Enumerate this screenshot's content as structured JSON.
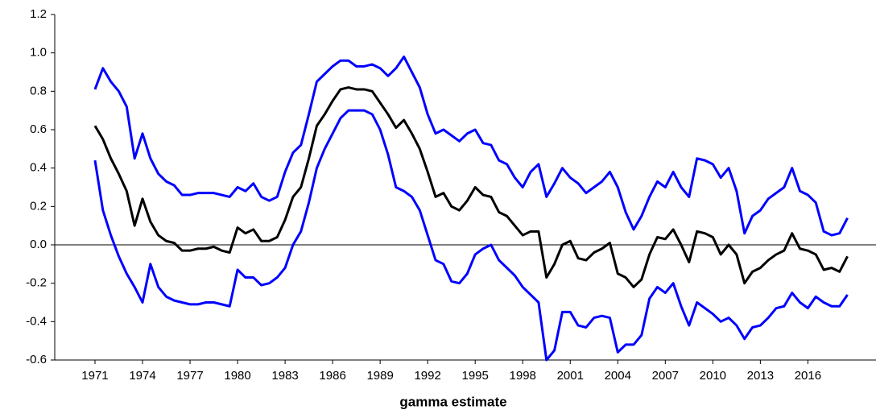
{
  "chart_data": {
    "type": "line",
    "title": "gamma estimate",
    "x": [
      1971,
      1971.5,
      1972,
      1972.5,
      1973,
      1973.5,
      1974,
      1974.5,
      1975,
      1975.5,
      1976,
      1976.5,
      1977,
      1977.5,
      1978,
      1978.5,
      1979,
      1979.5,
      1980,
      1980.5,
      1981,
      1981.5,
      1982,
      1982.5,
      1983,
      1983.5,
      1984,
      1984.5,
      1985,
      1985.5,
      1986,
      1986.5,
      1987,
      1987.5,
      1988,
      1988.5,
      1989,
      1989.5,
      1990,
      1990.5,
      1991,
      1991.5,
      1992,
      1992.5,
      1993,
      1993.5,
      1994,
      1994.5,
      1995,
      1995.5,
      1996,
      1996.5,
      1997,
      1997.5,
      1998,
      1998.5,
      1999,
      1999.5,
      2000,
      2000.5,
      2001,
      2001.5,
      2002,
      2002.5,
      2003,
      2003.5,
      2004,
      2004.5,
      2005,
      2005.5,
      2006,
      2006.5,
      2007,
      2007.5,
      2008,
      2008.5,
      2009,
      2009.5,
      2010,
      2010.5,
      2011,
      2011.5,
      2012,
      2012.5,
      2013,
      2013.5,
      2014,
      2014.5,
      2015,
      2015.5,
      2016,
      2016.5,
      2017,
      2017.5,
      2018,
      2018.5
    ],
    "series": [
      {
        "color": "#0000ff",
        "values": [
          0.81,
          0.92,
          0.85,
          0.8,
          0.72,
          0.45,
          0.58,
          0.45,
          0.37,
          0.33,
          0.31,
          0.26,
          0.26,
          0.27,
          0.27,
          0.27,
          0.26,
          0.25,
          0.3,
          0.28,
          0.32,
          0.25,
          0.23,
          0.25,
          0.38,
          0.48,
          0.52,
          0.68,
          0.85,
          0.89,
          0.93,
          0.96,
          0.96,
          0.93,
          0.93,
          0.94,
          0.92,
          0.88,
          0.92,
          0.98,
          0.9,
          0.82,
          0.68,
          0.58,
          0.6,
          0.57,
          0.54,
          0.58,
          0.6,
          0.53,
          0.52,
          0.44,
          0.42,
          0.35,
          0.3,
          0.38,
          0.42,
          0.25,
          0.32,
          0.4,
          0.35,
          0.32,
          0.27,
          0.3,
          0.33,
          0.38,
          0.3,
          0.17,
          0.08,
          0.15,
          0.25,
          0.33,
          0.3,
          0.38,
          0.3,
          0.25,
          0.45,
          0.44,
          0.42,
          0.35,
          0.4,
          0.28,
          0.06,
          0.15,
          0.18,
          0.24,
          0.27,
          0.3,
          0.4,
          0.28,
          0.26,
          0.22,
          0.07,
          0.05,
          0.06,
          0.14
        ]
      },
      {
        "color": "#000000",
        "values": [
          0.62,
          0.55,
          0.45,
          0.37,
          0.28,
          0.1,
          0.24,
          0.12,
          0.05,
          0.02,
          0.01,
          -0.03,
          -0.03,
          -0.02,
          -0.02,
          -0.01,
          -0.03,
          -0.04,
          0.09,
          0.06,
          0.08,
          0.02,
          0.02,
          0.04,
          0.13,
          0.25,
          0.3,
          0.45,
          0.62,
          0.68,
          0.75,
          0.81,
          0.82,
          0.81,
          0.81,
          0.8,
          0.74,
          0.68,
          0.61,
          0.65,
          0.58,
          0.5,
          0.38,
          0.25,
          0.27,
          0.2,
          0.18,
          0.23,
          0.3,
          0.26,
          0.25,
          0.17,
          0.15,
          0.1,
          0.05,
          0.07,
          0.07,
          -0.17,
          -0.1,
          0.0,
          0.02,
          -0.07,
          -0.08,
          -0.04,
          -0.02,
          0.01,
          -0.15,
          -0.17,
          -0.22,
          -0.18,
          -0.05,
          0.04,
          0.03,
          0.08,
          0.0,
          -0.09,
          0.07,
          0.06,
          0.04,
          -0.05,
          0.0,
          -0.05,
          -0.2,
          -0.14,
          -0.12,
          -0.08,
          -0.05,
          -0.03,
          0.06,
          -0.02,
          -0.03,
          -0.05,
          -0.13,
          -0.12,
          -0.14,
          -0.06
        ]
      },
      {
        "color": "#0000ff",
        "values": [
          0.44,
          0.18,
          0.05,
          -0.06,
          -0.15,
          -0.22,
          -0.3,
          -0.1,
          -0.22,
          -0.27,
          -0.29,
          -0.3,
          -0.31,
          -0.31,
          -0.3,
          -0.3,
          -0.31,
          -0.32,
          -0.13,
          -0.17,
          -0.17,
          -0.21,
          -0.2,
          -0.17,
          -0.12,
          0.0,
          0.07,
          0.22,
          0.4,
          0.5,
          0.58,
          0.66,
          0.7,
          0.7,
          0.7,
          0.68,
          0.6,
          0.47,
          0.3,
          0.28,
          0.25,
          0.18,
          0.05,
          -0.08,
          -0.1,
          -0.19,
          -0.2,
          -0.15,
          -0.05,
          -0.02,
          0.0,
          -0.08,
          -0.12,
          -0.16,
          -0.22,
          -0.26,
          -0.3,
          -0.6,
          -0.55,
          -0.35,
          -0.35,
          -0.42,
          -0.43,
          -0.38,
          -0.37,
          -0.38,
          -0.56,
          -0.52,
          -0.52,
          -0.47,
          -0.28,
          -0.22,
          -0.25,
          -0.2,
          -0.32,
          -0.42,
          -0.3,
          -0.33,
          -0.36,
          -0.4,
          -0.38,
          -0.42,
          -0.49,
          -0.43,
          -0.42,
          -0.38,
          -0.33,
          -0.32,
          -0.25,
          -0.3,
          -0.33,
          -0.27,
          -0.3,
          -0.32,
          -0.32,
          -0.26
        ]
      }
    ],
    "xlim": [
      1968.46,
      2020.3
    ],
    "xticks": [
      1971,
      1974,
      1977,
      1980,
      1983,
      1986,
      1989,
      1992,
      1995,
      1998,
      2001,
      2004,
      2007,
      2010,
      2013,
      2016
    ],
    "ylim": [
      -0.6,
      1.2
    ],
    "yticks": [
      -0.6,
      -0.4,
      -0.2,
      {
        "value": 0,
        "label": "0.0"
      },
      0.2,
      0.4,
      0.6,
      0.8,
      {
        "value": 1,
        "label": "1.0"
      },
      1.2
    ],
    "reference_line": 0,
    "grid": false
  }
}
